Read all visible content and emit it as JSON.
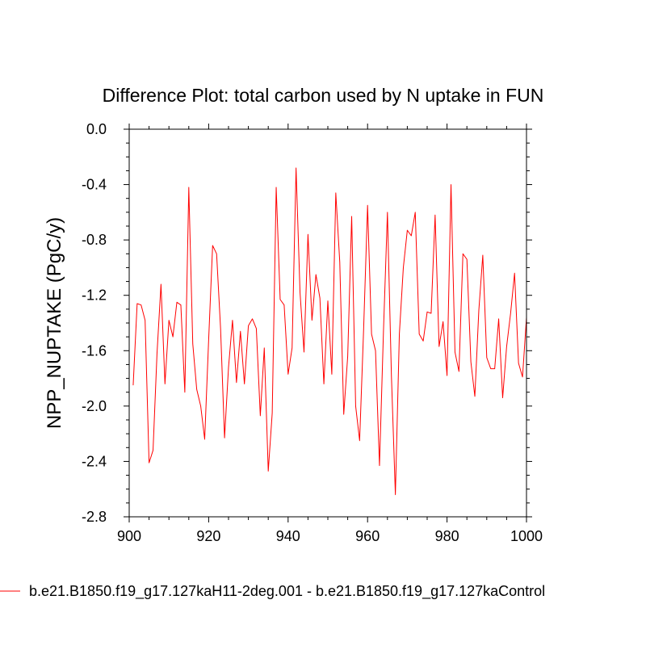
{
  "chart_data": {
    "type": "line",
    "title": "Difference Plot: total carbon used by N uptake in FUN",
    "xlabel": "",
    "ylabel": "NPP_NUPTAKE  (PgC/y)",
    "xlim": [
      900,
      1000
    ],
    "ylim": [
      -2.8,
      0.0
    ],
    "x_ticks": [
      900,
      920,
      940,
      960,
      980,
      1000
    ],
    "x_tick_labels": [
      "900",
      "920",
      "940",
      "960",
      "980",
      "1000"
    ],
    "y_ticks": [
      0.0,
      -0.4,
      -0.8,
      -1.2,
      -1.6,
      -2.0,
      -2.4,
      -2.8
    ],
    "y_tick_labels": [
      "0.0",
      "-0.4",
      "-0.8",
      "-1.2",
      "-1.6",
      "-2.0",
      "-2.4",
      "-2.8"
    ],
    "grid": false,
    "legend_position": "bottom",
    "series": [
      {
        "name": "b.e21.B1850.f19_g17.127kaH11-2deg.001 - b.e21.B1850.f19_g17.127kaControl",
        "color": "#ff0000",
        "x": [
          901,
          902,
          903,
          904,
          905,
          906,
          907,
          908,
          909,
          910,
          911,
          912,
          913,
          914,
          915,
          916,
          917,
          918,
          919,
          920,
          921,
          922,
          923,
          924,
          925,
          926,
          927,
          928,
          929,
          930,
          931,
          932,
          933,
          934,
          935,
          936,
          937,
          938,
          939,
          940,
          941,
          942,
          943,
          944,
          945,
          946,
          947,
          948,
          949,
          950,
          951,
          952,
          953,
          954,
          955,
          956,
          957,
          958,
          959,
          960,
          961,
          962,
          963,
          964,
          965,
          966,
          967,
          968,
          969,
          970,
          971,
          972,
          973,
          974,
          975,
          976,
          977,
          978,
          979,
          980,
          981,
          982,
          983,
          984,
          985,
          986,
          987,
          988,
          989,
          990,
          991,
          992,
          993,
          994,
          995,
          996,
          997,
          998,
          999,
          1000
        ],
        "values": [
          -1.85,
          -1.26,
          -1.27,
          -1.38,
          -2.41,
          -2.32,
          -1.62,
          -1.12,
          -1.84,
          -1.38,
          -1.5,
          -1.25,
          -1.27,
          -1.9,
          -0.42,
          -1.55,
          -1.88,
          -2.0,
          -2.24,
          -1.52,
          -0.84,
          -0.9,
          -1.44,
          -2.23,
          -1.72,
          -1.38,
          -1.83,
          -1.46,
          -1.84,
          -1.42,
          -1.37,
          -1.44,
          -2.07,
          -1.58,
          -2.47,
          -2.05,
          -0.42,
          -1.23,
          -1.27,
          -1.77,
          -1.58,
          -0.28,
          -1.18,
          -1.61,
          -0.76,
          -1.38,
          -1.05,
          -1.22,
          -1.84,
          -1.24,
          -1.77,
          -0.46,
          -0.96,
          -2.06,
          -1.64,
          -0.63,
          -2.0,
          -2.25,
          -1.45,
          -0.55,
          -1.48,
          -1.6,
          -2.43,
          -1.46,
          -0.6,
          -1.78,
          -2.64,
          -1.48,
          -1.0,
          -0.73,
          -0.77,
          -0.6,
          -1.48,
          -1.53,
          -1.32,
          -1.33,
          -0.62,
          -1.57,
          -1.39,
          -1.78,
          -0.4,
          -1.61,
          -1.75,
          -0.9,
          -0.94,
          -1.68,
          -1.93,
          -1.31,
          -0.91,
          -1.65,
          -1.73,
          -1.73,
          -1.37,
          -1.94,
          -1.57,
          -1.33,
          -1.04,
          -1.69,
          -1.79,
          -1.36
        ]
      }
    ]
  }
}
